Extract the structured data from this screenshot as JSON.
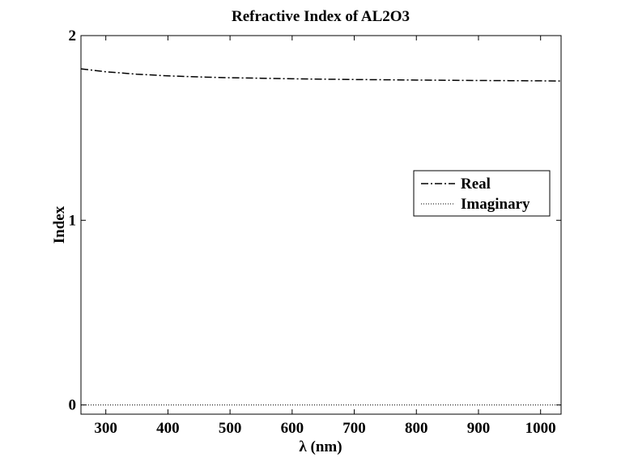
{
  "chart_data": {
    "type": "line",
    "title": "Refractive Index of AL2O3",
    "xlabel": "λ (nm)",
    "ylabel": "Index",
    "xlim": [
      260,
      1033
    ],
    "ylim": [
      -0.05,
      2
    ],
    "x_ticks": [
      300,
      400,
      500,
      600,
      700,
      800,
      900,
      1000
    ],
    "y_ticks": [
      0,
      1,
      2
    ],
    "grid": false,
    "legend_position": "right",
    "series": [
      {
        "name": "Real",
        "line_style": "dash-dot",
        "color": "#000000",
        "x": [
          260,
          300,
          350,
          400,
          450,
          500,
          550,
          600,
          650,
          700,
          750,
          800,
          850,
          900,
          950,
          1000,
          1033
        ],
        "y": [
          1.82,
          1.804,
          1.791,
          1.782,
          1.776,
          1.772,
          1.769,
          1.766,
          1.764,
          1.762,
          1.761,
          1.759,
          1.758,
          1.757,
          1.756,
          1.755,
          1.754
        ]
      },
      {
        "name": "Imaginary",
        "line_style": "dotted",
        "color": "#000000",
        "x": [
          260,
          1033
        ],
        "y": [
          0,
          0
        ]
      }
    ]
  }
}
